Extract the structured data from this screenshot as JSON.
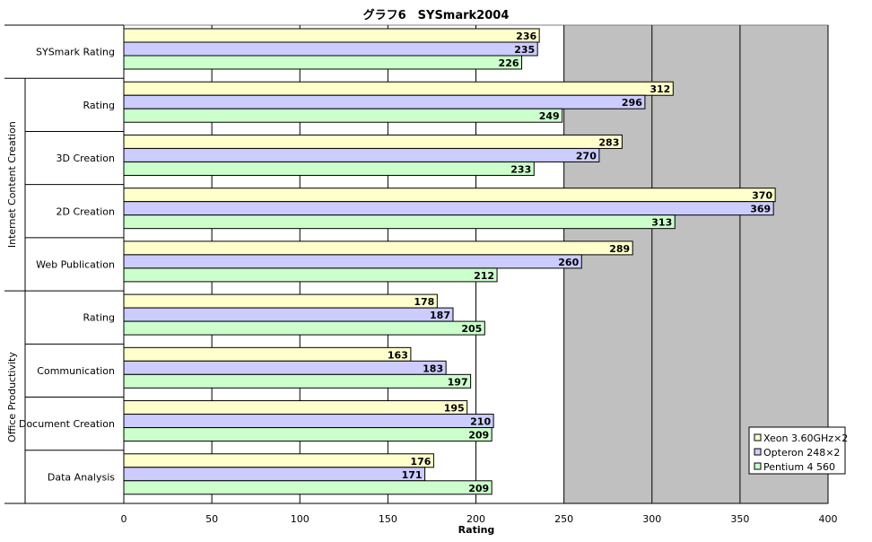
{
  "chart_data": {
    "type": "bar",
    "orientation": "horizontal",
    "title": "グラフ6　SYSmark2004",
    "xlabel": "Rating",
    "xlim": [
      0,
      400
    ],
    "xticks": [
      0,
      50,
      100,
      150,
      200,
      250,
      300,
      350,
      400
    ],
    "grid": true,
    "legend_position": "bottom-right",
    "groups": [
      {
        "label": "",
        "categories": [
          "SYSmark Rating"
        ]
      },
      {
        "label": "Internet Content Creation",
        "categories": [
          "Rating",
          "3D Creation",
          "2D Creation",
          "Web Publication"
        ]
      },
      {
        "label": "Office Productivity",
        "categories": [
          "Rating",
          "Communication",
          "Document Creation",
          "Data Analysis"
        ]
      }
    ],
    "categories": [
      "SYSmark Rating",
      "Rating",
      "3D Creation",
      "2D Creation",
      "Web Publication",
      "Rating",
      "Communication",
      "Document Creation",
      "Data Analysis"
    ],
    "series": [
      {
        "name": "Xeon 3.60GHz×2",
        "color": "#ffffcc",
        "values": [
          236,
          312,
          283,
          370,
          289,
          178,
          163,
          195,
          176
        ]
      },
      {
        "name": "Opteron 248×2",
        "color": "#ccccff",
        "values": [
          235,
          296,
          270,
          369,
          260,
          187,
          183,
          210,
          171
        ]
      },
      {
        "name": "Pentium 4 560",
        "color": "#ccffcc",
        "values": [
          226,
          249,
          233,
          313,
          212,
          205,
          197,
          209,
          209
        ]
      }
    ]
  }
}
